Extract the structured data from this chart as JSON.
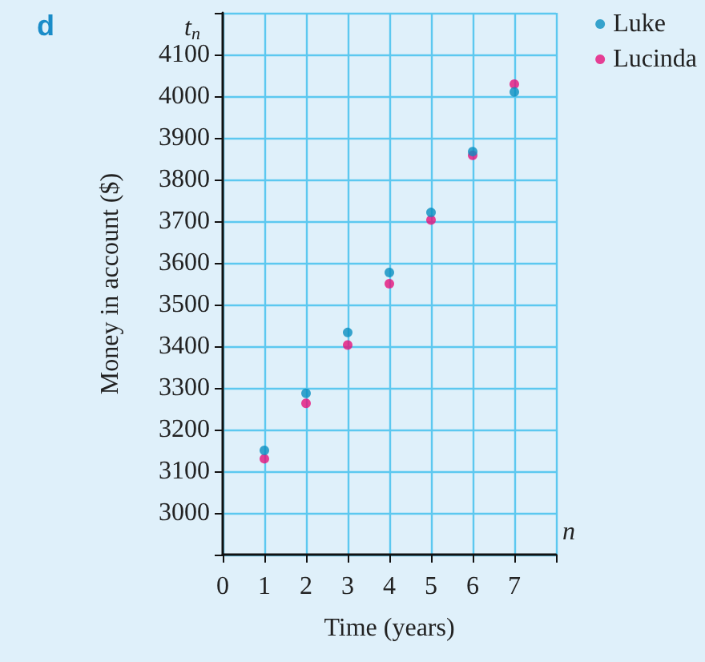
{
  "chart_data": {
    "type": "scatter",
    "title": "d",
    "xlabel": "Time (years)",
    "ylabel": "Money in account ($)",
    "annotations": [
      "t$_{n}$",
      "n"
    ],
    "x": [
      1,
      2,
      3,
      4,
      5,
      6,
      7
    ],
    "series": [
      {
        "name": "Luke",
        "color": "#0a8fc0",
        "values": [
          3150,
          3287,
          3433,
          3577,
          3721,
          3867,
          4010
        ]
      },
      {
        "name": "Lucinda",
        "color": "#e6117a",
        "values": [
          3130,
          3263,
          3403,
          3550,
          3703,
          3858,
          4029
        ]
      }
    ],
    "xlim": [
      0,
      8
    ],
    "xticks": [
      {
        "value": 0,
        "label": "0"
      },
      1,
      2,
      3,
      4,
      5,
      6,
      7,
      {
        "value": 8,
        "label": null
      }
    ],
    "ylim": [
      2900,
      4200
    ],
    "yticks": [
      {
        "value": 2900,
        "label": null
      },
      3000,
      3100,
      3200,
      3300,
      3400,
      3500,
      3600,
      3700,
      3800,
      3900,
      4000,
      4100,
      {
        "value": 4200,
        "label": null
      }
    ],
    "grid": true,
    "legend": "top right",
    "marker": "circle"
  }
}
